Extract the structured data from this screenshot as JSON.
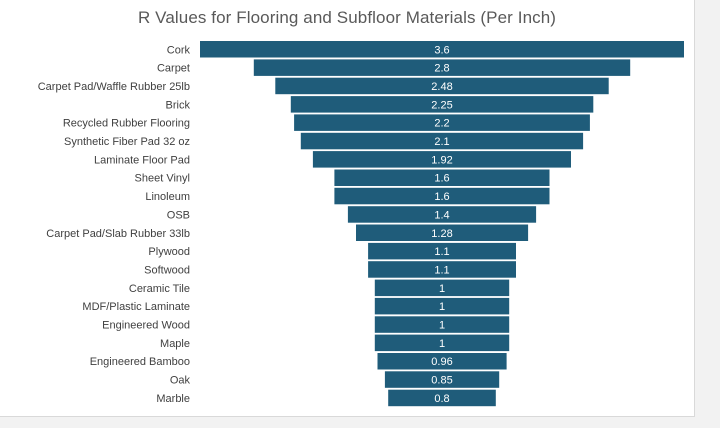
{
  "chart_data": {
    "type": "bar",
    "orientation": "horizontal-centered",
    "title": "R Values for Flooring and Subfloor Materials  (Per Inch)",
    "xlabel": "",
    "ylabel": "",
    "bar_color": "#1f5c7a",
    "categories": [
      "Cork",
      "Carpet",
      "Carpet Pad/Waffle Rubber 25lb",
      "Brick",
      "Recycled Rubber Flooring",
      "Synthetic Fiber Pad 32 oz",
      "Laminate Floor Pad",
      "Sheet Vinyl",
      "Linoleum",
      "OSB",
      "Carpet Pad/Slab Rubber 33lb",
      "Plywood",
      "Softwood",
      "Ceramic Tile",
      "MDF/Plastic Laminate",
      "Engineered Wood",
      "Maple",
      "Engineered Bamboo",
      "Oak",
      "Marble"
    ],
    "values": [
      3.6,
      2.8,
      2.48,
      2.25,
      2.2,
      2.1,
      1.92,
      1.6,
      1.6,
      1.4,
      1.28,
      1.1,
      1.1,
      1,
      1,
      1,
      1,
      0.96,
      0.85,
      0.8
    ],
    "value_labels": [
      "3.6",
      "2.8",
      "2.48",
      "2.25",
      "2.2",
      "2.1",
      "1.92",
      "1.6",
      "1.6",
      "1.4",
      "1.28",
      "1.1",
      "1.1",
      "1",
      "1",
      "1",
      "1",
      "0.96",
      "0.85",
      "0.8"
    ],
    "xlim": [
      0,
      3.6
    ],
    "grid": false,
    "legend": "none"
  }
}
